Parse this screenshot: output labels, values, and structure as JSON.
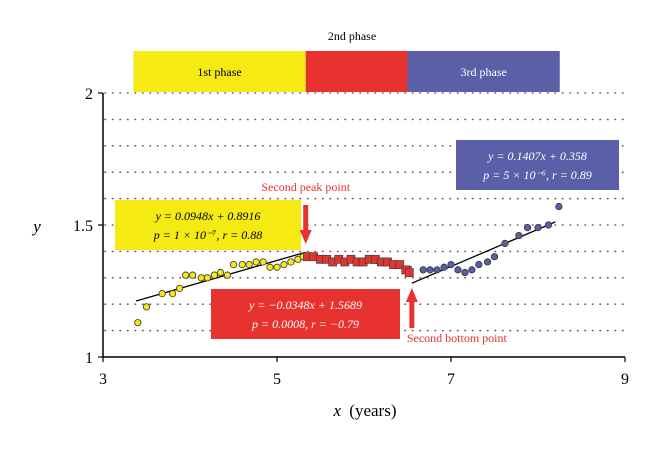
{
  "chart_data": {
    "type": "scatter",
    "xlabel_var": "x",
    "xlabel_unit": "(years)",
    "ylabel": "y",
    "xlim": [
      3,
      9
    ],
    "ylim": [
      1,
      2
    ],
    "xticks": [
      "3",
      "5",
      "7",
      "9"
    ],
    "yticks": [
      "1",
      "1.5",
      "2"
    ],
    "grid": "horizontal dotted",
    "phase_header": "2nd phase",
    "phases": [
      {
        "label": "1st phase",
        "x_start": 3.35,
        "x_end": 5.33,
        "color": "#f5ea14"
      },
      {
        "label": "",
        "x_start": 5.33,
        "x_end": 6.5,
        "color": "#e8322f"
      },
      {
        "label": "3rd phase",
        "x_start": 6.5,
        "x_end": 8.25,
        "color": "#5a5fa8"
      }
    ],
    "series": [
      {
        "marker": "circle",
        "color": "#f5ea14",
        "points": [
          [
            3.4,
            1.13
          ],
          [
            3.5,
            1.19
          ],
          [
            3.68,
            1.24
          ],
          [
            3.8,
            1.24
          ],
          [
            3.88,
            1.26
          ],
          [
            3.95,
            1.31
          ],
          [
            4.03,
            1.31
          ],
          [
            4.13,
            1.3
          ],
          [
            4.2,
            1.3
          ],
          [
            4.28,
            1.31
          ],
          [
            4.35,
            1.32
          ],
          [
            4.43,
            1.31
          ],
          [
            4.5,
            1.35
          ],
          [
            4.6,
            1.35
          ],
          [
            4.68,
            1.35
          ],
          [
            4.76,
            1.36
          ],
          [
            4.84,
            1.36
          ],
          [
            4.92,
            1.34
          ],
          [
            5.0,
            1.34
          ],
          [
            5.08,
            1.35
          ],
          [
            5.16,
            1.36
          ],
          [
            5.24,
            1.37
          ],
          [
            5.3,
            1.38
          ]
        ],
        "fit": {
          "slope": 0.0948,
          "intercept": 0.8916,
          "x_from": 3.38,
          "x_to": 5.33
        }
      },
      {
        "marker": "square",
        "color": "#e8322f",
        "points": [
          [
            5.35,
            1.38
          ],
          [
            5.42,
            1.38
          ],
          [
            5.5,
            1.37
          ],
          [
            5.57,
            1.37
          ],
          [
            5.64,
            1.36
          ],
          [
            5.71,
            1.37
          ],
          [
            5.78,
            1.36
          ],
          [
            5.85,
            1.37
          ],
          [
            5.92,
            1.36
          ],
          [
            5.99,
            1.36
          ],
          [
            6.06,
            1.37
          ],
          [
            6.13,
            1.37
          ],
          [
            6.2,
            1.36
          ],
          [
            6.27,
            1.36
          ],
          [
            6.34,
            1.35
          ],
          [
            6.41,
            1.35
          ],
          [
            6.48,
            1.33
          ],
          [
            6.52,
            1.32
          ]
        ],
        "fit": {
          "slope": -0.0348,
          "intercept": 1.5689,
          "x_from": 5.33,
          "x_to": 6.55
        }
      },
      {
        "marker": "circle",
        "color": "#5a5fa8",
        "points": [
          [
            6.68,
            1.33
          ],
          [
            6.76,
            1.33
          ],
          [
            6.84,
            1.33
          ],
          [
            6.92,
            1.34
          ],
          [
            7.0,
            1.35
          ],
          [
            7.08,
            1.33
          ],
          [
            7.16,
            1.32
          ],
          [
            7.24,
            1.33
          ],
          [
            7.32,
            1.35
          ],
          [
            7.42,
            1.36
          ],
          [
            7.5,
            1.38
          ],
          [
            7.62,
            1.43
          ],
          [
            7.78,
            1.46
          ],
          [
            7.88,
            1.49
          ],
          [
            8.0,
            1.49
          ],
          [
            8.12,
            1.5
          ],
          [
            8.24,
            1.57
          ]
        ],
        "fit": {
          "slope": 0.1407,
          "intercept": 0.358,
          "x_from": 6.55,
          "x_to": 8.2
        }
      }
    ],
    "annotations": {
      "peak": {
        "label": "Second peak point",
        "x": 5.33,
        "y": 1.38
      },
      "bottom": {
        "label": "Second bottom point",
        "x": 6.55,
        "y": 1.32
      }
    },
    "equation_boxes": [
      {
        "line1": "y = 0.0948x + 0.8916",
        "line2": "p = 1 × 10⁻⁷, r = 0.88",
        "color": "#f5ea14",
        "text_color": "#000000"
      },
      {
        "line1": "y = −0.0348x + 1.5689",
        "line2": "p = 0.0008, r = −0.79",
        "color": "#e8322f",
        "text_color": "#ffffff"
      },
      {
        "line1": "y = 0.1407x + 0.358",
        "line2": "p = 5 × 10⁻⁶, r = 0.89",
        "color": "#5a5fa8",
        "text_color": "#ffffff"
      }
    ]
  }
}
